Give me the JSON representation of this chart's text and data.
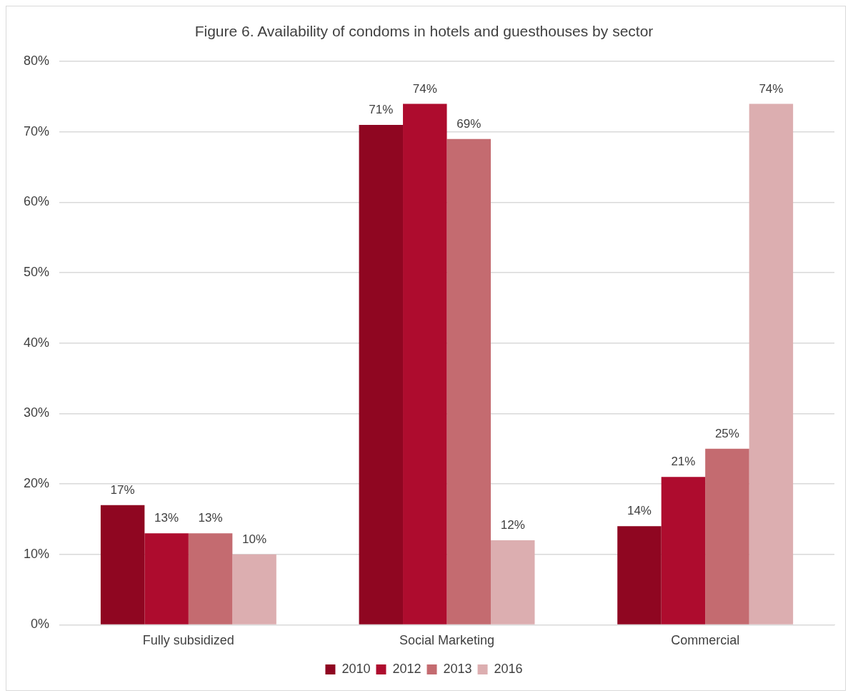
{
  "chart_data": {
    "type": "bar",
    "title": "Figure 6. Availability of condoms in hotels and guesthouses by sector",
    "categories": [
      "Fully subsidized",
      "Social Marketing",
      "Commercial"
    ],
    "series": [
      {
        "name": "2010",
        "color": "#8f0621",
        "values": [
          17,
          71,
          14
        ],
        "value_labels": [
          "17%",
          "71%",
          "14%"
        ]
      },
      {
        "name": "2012",
        "color": "#ae0c2e",
        "values": [
          13,
          74,
          21
        ],
        "value_labels": [
          "13%",
          "74%",
          "21%"
        ]
      },
      {
        "name": "2013",
        "color": "#c46b70",
        "values": [
          13,
          69,
          25
        ],
        "value_labels": [
          "13%",
          "69%",
          "25%"
        ]
      },
      {
        "name": "2016",
        "color": "#dcaeb0",
        "values": [
          10,
          12,
          74
        ],
        "value_labels": [
          "10%",
          "12%",
          "74%"
        ]
      }
    ],
    "ylim": [
      0,
      80
    ],
    "yticks": [
      {
        "value": 0,
        "label": "0%"
      },
      {
        "value": 10,
        "label": "10%"
      },
      {
        "value": 20,
        "label": "20%"
      },
      {
        "value": 30,
        "label": "30%"
      },
      {
        "value": 40,
        "label": "40%"
      },
      {
        "value": 50,
        "label": "50%"
      },
      {
        "value": 60,
        "label": "60%"
      },
      {
        "value": 70,
        "label": "70%"
      },
      {
        "value": 80,
        "label": "80%"
      }
    ],
    "grid": "y",
    "legend": "bottom"
  }
}
